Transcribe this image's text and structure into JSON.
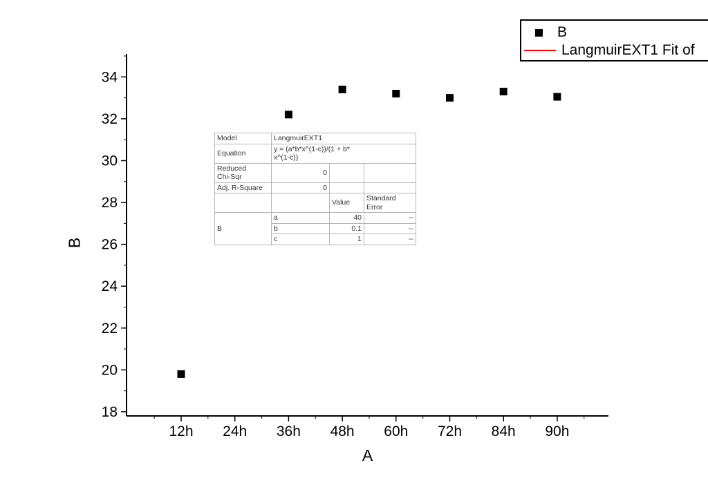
{
  "chart_data": {
    "type": "scatter",
    "title": "",
    "xlabel": "A",
    "ylabel": "B",
    "categories": [
      "12h",
      "24h",
      "36h",
      "48h",
      "60h",
      "72h",
      "84h",
      "90h"
    ],
    "series": [
      {
        "name": "B",
        "marker": "square",
        "color": "#000000",
        "points": [
          {
            "x": "12h",
            "y": 19.8
          },
          {
            "x": "36h",
            "y": 32.2
          },
          {
            "x": "48h",
            "y": 33.4
          },
          {
            "x": "60h",
            "y": 33.2
          },
          {
            "x": "72h",
            "y": 33.0
          },
          {
            "x": "84h",
            "y": 33.3
          },
          {
            "x": "90h",
            "y": 33.05
          }
        ]
      }
    ],
    "yticks": [
      18,
      20,
      22,
      24,
      26,
      28,
      30,
      32,
      34
    ],
    "ylim": [
      17.8,
      35.1
    ],
    "grid": false,
    "legend_position": "top-right"
  },
  "legend": {
    "items": [
      {
        "label": "B",
        "marker": "square",
        "color": "#000000"
      },
      {
        "label": "LangmuirEXT1 Fit of",
        "marker": "line",
        "color": "#ff0000"
      }
    ]
  },
  "inset_table": {
    "model_label": "Model",
    "model_value": "LangmuirEXT1",
    "equation_label": "Equation",
    "equation_value": "y = (a*b*x^(1-c))/(1 + b*\nx^(1-c))",
    "chisqr_label": "Reduced\nChi-Sqr",
    "chisqr_value": "0",
    "rsquare_label": "Adj. R-Square",
    "rsquare_value": "0",
    "value_header": "Value",
    "stderr_header": "Standard Error",
    "series_label": "B",
    "params": [
      {
        "name": "a",
        "value": "40",
        "stderr": "--"
      },
      {
        "name": "b",
        "value": "0.1",
        "stderr": "--"
      },
      {
        "name": "c",
        "value": "1",
        "stderr": "--"
      }
    ]
  },
  "colors": {
    "marker": "#000000",
    "fit_line": "#ff0000",
    "table_border": "#b5b5b5",
    "axis": "#000000"
  }
}
